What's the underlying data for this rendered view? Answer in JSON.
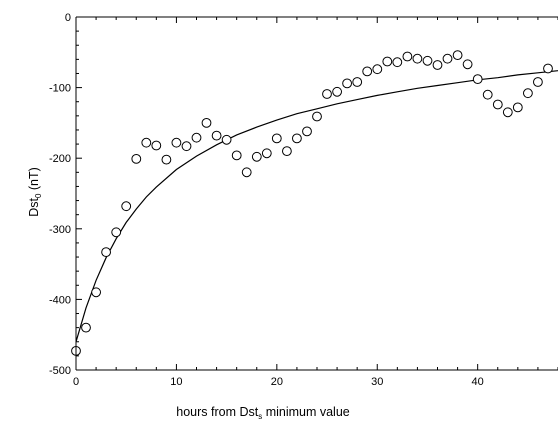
{
  "chart_data": {
    "type": "scatter",
    "xlabel": {
      "prefix": "hours from Dst",
      "subscript": "s",
      "suffix": " minimum value"
    },
    "ylabel": {
      "prefix": "Dst",
      "subscript": "0",
      "suffix": " (nT)"
    },
    "xlim": [
      0,
      48
    ],
    "ylim": [
      -500,
      0
    ],
    "x_ticks": [
      0,
      10,
      20,
      30,
      40
    ],
    "x_tick_labels": [
      "0",
      "10",
      "20",
      "30",
      "40"
    ],
    "y_ticks": [
      0,
      -100,
      -200,
      -300,
      -400,
      -500
    ],
    "y_tick_labels": [
      "0",
      "-100",
      "-200",
      "-300",
      "-400",
      "-500"
    ],
    "grid": false,
    "legend": "none",
    "series": [
      {
        "kind": "points",
        "marker": "open-circle",
        "x": [
          0,
          1,
          2,
          3,
          4,
          5,
          6,
          7,
          8,
          9,
          10,
          11,
          12,
          13,
          14,
          15,
          16,
          17,
          18,
          19,
          20,
          21,
          22,
          23,
          24,
          25,
          26,
          27,
          28,
          29,
          30,
          31,
          32,
          33,
          34,
          35,
          36,
          37,
          38,
          39,
          40,
          41,
          42,
          43,
          44,
          45,
          46,
          47
        ],
        "y": [
          -473,
          -440,
          -390,
          -333,
          -305,
          -268,
          -201,
          -178,
          -182,
          -202,
          -178,
          -183,
          -171,
          -150,
          -168,
          -174,
          -196,
          -220,
          -198,
          -193,
          -172,
          -190,
          -172,
          -162,
          -141,
          -109,
          -106,
          -94,
          -92,
          -77,
          -74,
          -63,
          -64,
          -56,
          -59,
          -62,
          -68,
          -59,
          -54,
          -67,
          -88,
          -110,
          -124,
          -135,
          -128,
          -108,
          -92,
          -73
        ]
      },
      {
        "kind": "fit",
        "line_style": "solid",
        "x": [
          0,
          1,
          2,
          3,
          4,
          5,
          6,
          7,
          8,
          10,
          12,
          14,
          16,
          18,
          20,
          22,
          24,
          26,
          28,
          30,
          32,
          34,
          36,
          38,
          40,
          42,
          44,
          46,
          48
        ],
        "y": [
          -460,
          -412,
          -373,
          -341,
          -314,
          -291,
          -272,
          -255,
          -241,
          -216,
          -197,
          -181,
          -167,
          -156,
          -146,
          -137,
          -130,
          -123,
          -117,
          -111,
          -106,
          -101,
          -97,
          -93,
          -89,
          -86,
          -82,
          -79,
          -76
        ]
      }
    ],
    "colors": {
      "axis": "#000000",
      "marker": "#000000",
      "fit_line": "#000000",
      "background": "#ffffff"
    }
  }
}
